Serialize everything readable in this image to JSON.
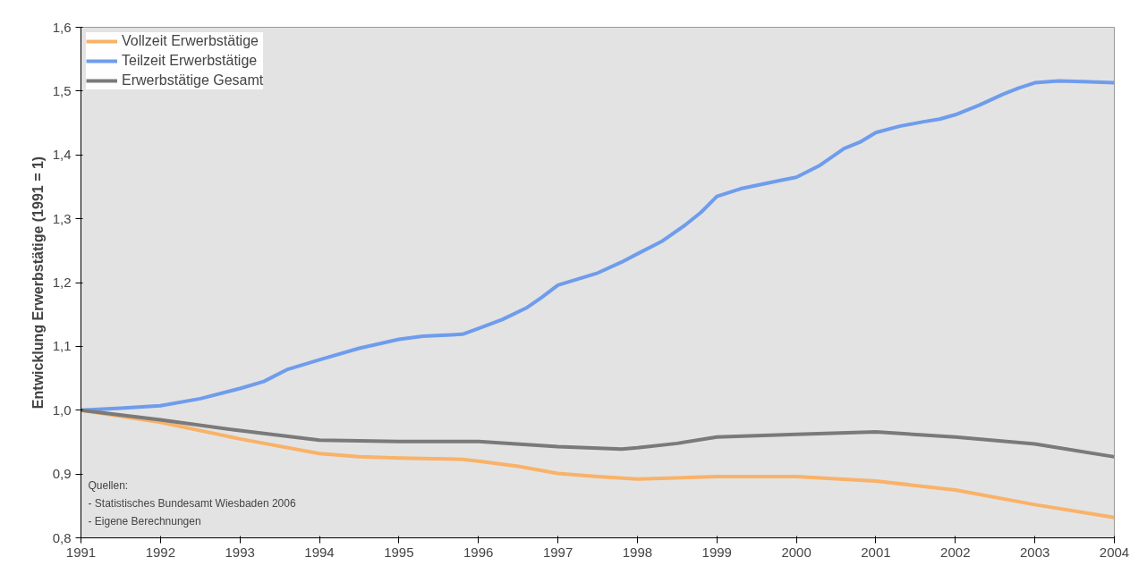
{
  "chart_data": {
    "type": "line",
    "ylabel": "Entwicklung Erwerbstätige (1991 = 1)",
    "xlim": [
      1991,
      2004
    ],
    "ylim": [
      0.8,
      1.6
    ],
    "xticks": [
      1991,
      1992,
      1993,
      1994,
      1995,
      1996,
      1997,
      1998,
      1999,
      2000,
      2001,
      2002,
      2003,
      2004
    ],
    "yticks": [
      {
        "value": 0.8,
        "label": "0,8"
      },
      {
        "value": 0.9,
        "label": "0,9"
      },
      {
        "value": 1.0,
        "label": "1,0"
      },
      {
        "value": 1.1,
        "label": "1,1"
      },
      {
        "value": 1.2,
        "label": "1,2"
      },
      {
        "value": 1.3,
        "label": "1,3"
      },
      {
        "value": 1.4,
        "label": "1,4"
      },
      {
        "value": 1.5,
        "label": "1,5"
      },
      {
        "value": 1.6,
        "label": "1,6"
      }
    ],
    "grid": false,
    "legend": "top left",
    "marker": "none",
    "line_style": "solid",
    "annotations": [
      "Quellen:",
      "- Statistisches Bundesamt Wiesbaden 2006",
      "- Eigene Berechnungen"
    ],
    "series": [
      {
        "name": "Vollzeit Erwerbstätige",
        "color": "#f9b268",
        "x": [
          1991,
          1992,
          1993,
          1994,
          1994.5,
          1995,
          1995.8,
          1996,
          1996.5,
          1997,
          1997.5,
          1998,
          1998.3,
          1999,
          2000,
          2001,
          2002,
          2003,
          2004
        ],
        "values": [
          1.0,
          0.981,
          0.955,
          0.932,
          0.927,
          0.925,
          0.923,
          0.92,
          0.912,
          0.901,
          0.896,
          0.892,
          0.893,
          0.896,
          0.896,
          0.889,
          0.875,
          0.852,
          0.832
        ]
      },
      {
        "name": "Teilzeit Erwerbstätige",
        "color": "#6f9cec",
        "x": [
          1991,
          1991.5,
          1992,
          1992.5,
          1993,
          1993.3,
          1993.6,
          1994,
          1994.5,
          1995,
          1995.3,
          1995.8,
          1996,
          1996.3,
          1996.6,
          1996.8,
          1997,
          1997.5,
          1997.8,
          1998,
          1998.3,
          1998.6,
          1998.8,
          1999,
          1999.3,
          1999.8,
          2000,
          2000.3,
          2000.6,
          2000.8,
          2001,
          2001.3,
          2001.6,
          2001.8,
          2002,
          2002.3,
          2002.6,
          2002.8,
          2003,
          2003.3,
          2003.6,
          2004
        ],
        "values": [
          1.0,
          1.003,
          1.007,
          1.018,
          1.034,
          1.045,
          1.064,
          1.079,
          1.097,
          1.111,
          1.116,
          1.119,
          1.128,
          1.142,
          1.16,
          1.177,
          1.196,
          1.215,
          1.232,
          1.245,
          1.264,
          1.29,
          1.31,
          1.335,
          1.347,
          1.36,
          1.365,
          1.384,
          1.41,
          1.42,
          1.435,
          1.445,
          1.452,
          1.456,
          1.463,
          1.478,
          1.495,
          1.505,
          1.513,
          1.516,
          1.515,
          1.513
        ]
      },
      {
        "name": "Erwerbstätige Gesamt",
        "color": "#7a7a7a",
        "x": [
          1991,
          1992,
          1993,
          1994,
          1995,
          1996,
          1997,
          1997.8,
          1998,
          1998.5,
          1999,
          2000,
          2001,
          2002,
          2003,
          2004
        ],
        "values": [
          1.0,
          0.985,
          0.968,
          0.953,
          0.951,
          0.951,
          0.943,
          0.939,
          0.941,
          0.948,
          0.958,
          0.962,
          0.966,
          0.958,
          0.947,
          0.927
        ]
      }
    ]
  }
}
